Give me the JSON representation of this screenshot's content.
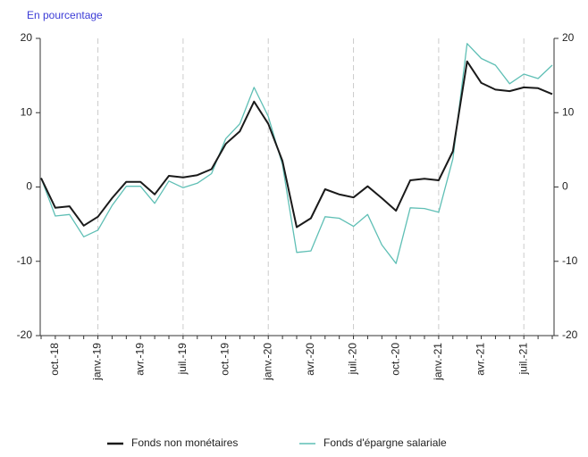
{
  "chart_data": {
    "type": "line",
    "subtitle": "En pourcentage",
    "categories": [
      null,
      "oct.-18",
      null,
      null,
      "janv.-19",
      null,
      null,
      "avr.-19",
      null,
      null,
      "juil.-19",
      null,
      null,
      "oct.-19",
      null,
      null,
      "janv.-20",
      null,
      null,
      "avr.-20",
      null,
      null,
      "juil.-20",
      null,
      null,
      "oct.-20",
      null,
      null,
      "janv.-21",
      null,
      null,
      "avr.-21",
      null,
      null,
      "juil.-21",
      null,
      null
    ],
    "series": [
      {
        "name": "Fonds non monétaires",
        "color": "#1a1a1a",
        "values": [
          1.2,
          -2.8,
          -2.6,
          -5.2,
          -4.0,
          -1.5,
          0.7,
          0.7,
          -1.0,
          1.5,
          1.3,
          1.6,
          2.4,
          5.8,
          7.5,
          11.5,
          8.5,
          3.5,
          -5.4,
          -4.2,
          -0.3,
          -1.0,
          -1.4,
          0.1,
          -1.5,
          -3.2,
          0.9,
          1.1,
          0.9,
          4.8,
          16.9,
          14.0,
          13.1,
          12.9,
          13.4,
          13.3,
          12.5
        ]
      },
      {
        "name": "Fonds d'épargne salariale",
        "color": "#5fbfb5",
        "values": [
          1.2,
          -3.9,
          -3.7,
          -6.7,
          -5.8,
          -2.5,
          0.1,
          0.1,
          -2.2,
          0.8,
          -0.1,
          0.5,
          1.8,
          6.5,
          8.5,
          13.4,
          9.5,
          3.0,
          -8.8,
          -8.6,
          -4.0,
          -4.2,
          -5.3,
          -3.7,
          -7.8,
          -10.3,
          -2.8,
          -2.9,
          -3.4,
          3.8,
          19.3,
          17.3,
          16.4,
          13.9,
          15.2,
          14.6,
          16.4
        ]
      }
    ],
    "ylim": [
      -20,
      20
    ],
    "yticks": [
      -20,
      -10,
      0,
      10,
      20
    ],
    "y2lim": [
      -20,
      20
    ],
    "y2ticks": [
      -20,
      -10,
      0,
      10,
      20
    ],
    "legend": "bottom"
  }
}
